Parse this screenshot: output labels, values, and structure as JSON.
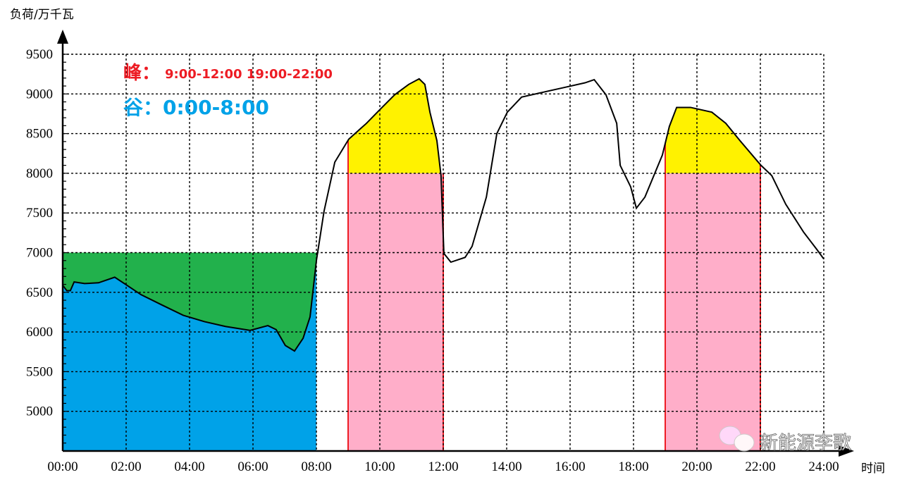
{
  "chart_data": {
    "type": "area",
    "ylabel": "负荷/万千瓦",
    "xlabel": "时间",
    "xlim": [
      0,
      24
    ],
    "ylim": [
      4500,
      9500
    ],
    "x_ticks": [
      "00:00",
      "02:00",
      "04:00",
      "06:00",
      "08:00",
      "10:00",
      "12:00",
      "14:00",
      "16:00",
      "18:00",
      "20:00",
      "22:00",
      "24:00"
    ],
    "y_ticks": [
      5000,
      5500,
      6000,
      6500,
      7000,
      7500,
      8000,
      8500,
      9000,
      9500
    ],
    "grid": true,
    "annotations": {
      "peak": "峰：",
      "peak_hours": "9:00-12:00 19:00-22:00",
      "valley": "谷：0:00-8:00"
    },
    "peak_periods": [
      [
        9,
        12
      ],
      [
        19,
        22
      ]
    ],
    "valley_period": [
      0,
      8
    ],
    "valley_reference": 7000,
    "peak_reference": 8000,
    "series": [
      {
        "x": [
          0,
          0.13,
          0.24,
          0.36,
          0.69,
          1.13,
          1.64,
          2.02,
          2.47,
          3.13,
          3.8,
          4.47,
          5.13,
          5.91,
          6.47,
          6.73,
          7.02,
          7.31,
          7.58,
          7.8,
          8.0,
          8.24,
          8.58,
          9.02,
          9.58,
          10.02,
          10.47,
          10.91,
          11.24,
          11.42,
          11.58,
          11.8,
          11.93,
          12.02,
          12.24,
          12.69,
          12.91,
          13.36,
          13.69,
          14.02,
          14.47,
          15.13,
          15.8,
          16.47,
          16.76,
          17.13,
          17.47,
          17.58,
          17.91,
          18.09,
          18.36,
          18.91,
          19.13,
          19.36,
          19.8,
          20.47,
          20.91,
          21.36,
          22.02,
          22.36,
          22.8,
          23.36,
          23.8,
          24
        ],
        "y": [
          6590,
          6520,
          6520,
          6630,
          6610,
          6620,
          6690,
          6590,
          6470,
          6340,
          6210,
          6130,
          6070,
          6020,
          6080,
          6030,
          5830,
          5760,
          5920,
          6190,
          6900,
          7520,
          8140,
          8430,
          8630,
          8810,
          8990,
          9120,
          9190,
          9120,
          8770,
          8410,
          7970,
          6990,
          6880,
          6940,
          7080,
          7700,
          8500,
          8770,
          8960,
          9020,
          9080,
          9140,
          9180,
          8990,
          8630,
          8100,
          7830,
          7560,
          7700,
          8230,
          8590,
          8830,
          8830,
          8770,
          8630,
          8410,
          8100,
          7970,
          7610,
          7260,
          7030,
          6920
        ]
      }
    ],
    "colors": {
      "valley_fill": "#00a2e8",
      "valley_gap": "#22b14c",
      "peak_base": "#ffaec9",
      "peak_excess": "#fff200",
      "peak_line": "#ed1c24",
      "curve": "#000000"
    }
  },
  "watermark": "新能源李歌"
}
